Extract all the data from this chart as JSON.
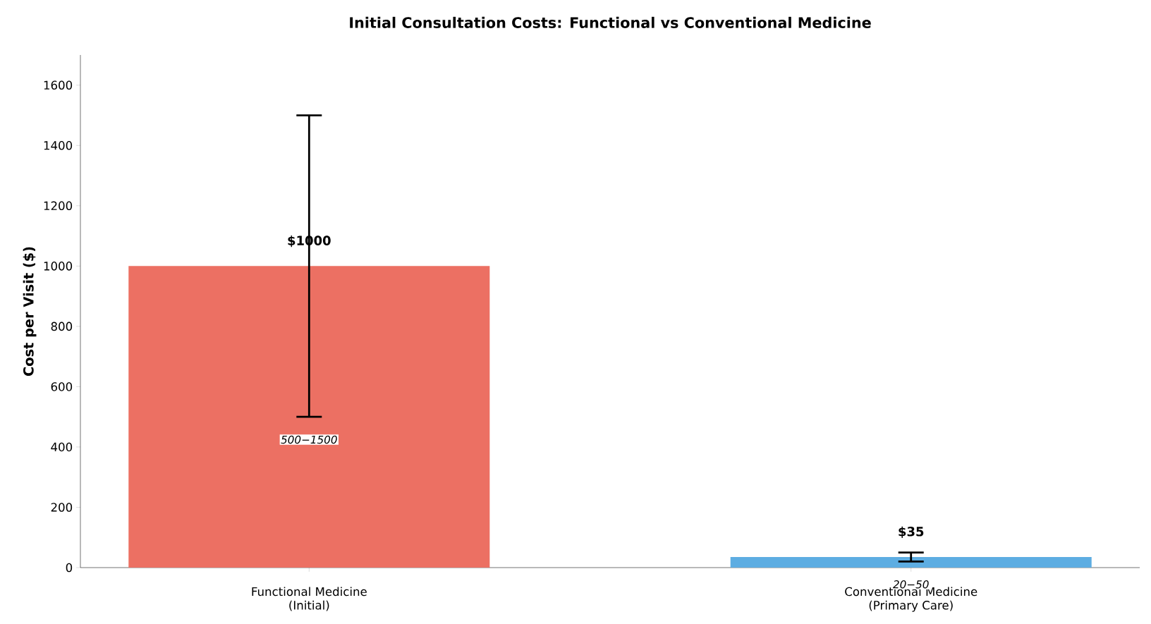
{
  "chart_data": {
    "type": "bar",
    "title": "Initial Consultation Costs: Functional vs Conventional Medicine",
    "ylabel": "Cost per Visit ($)",
    "categories": [
      "Functional Medicine\n(Initial)",
      "Conventional Medicine\n(Primary Care)"
    ],
    "values": [
      1000,
      35
    ],
    "colors": [
      "#ec7063",
      "#5dade2"
    ],
    "errors": [
      [
        500,
        1500
      ],
      [
        20,
        50
      ]
    ],
    "value_labels": [
      "$1000",
      "$35"
    ],
    "annotations": [
      "500−1500",
      "20−50"
    ],
    "ylim": [
      0,
      1700
    ],
    "yticks": [
      0,
      200,
      400,
      600,
      800,
      1000,
      1200,
      1400,
      1600
    ]
  }
}
